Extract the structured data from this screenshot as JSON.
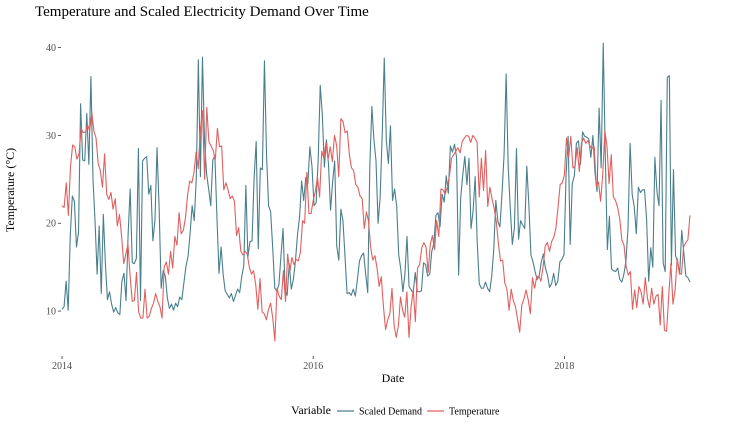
{
  "chart_data": {
    "type": "line",
    "title": "Temperature and Scaled Electricity Demand Over Time",
    "xlabel": "Date",
    "ylabel": "Temperature (°C)",
    "x_tick_labels": [
      "2014",
      "2016",
      "2018"
    ],
    "y_ticks": [
      10,
      20,
      30,
      40
    ],
    "xlim": [
      2014.0,
      2019.0
    ],
    "ylim": [
      5,
      42
    ],
    "grid": false,
    "legend": {
      "title": "Variable",
      "position": "bottom",
      "entries": [
        "Scaled Demand",
        "Temperature"
      ]
    },
    "x_sampling": "weekly, 2014-01-01 to 2018-12-31",
    "series": [
      {
        "name": "Scaled Demand",
        "color": "#4a7f8c",
        "values": [
          10.2,
          10.5,
          13.4,
          10.1,
          18.6,
          23.1,
          22.5,
          17.3,
          19.0,
          33.6,
          27.2,
          27.1,
          32.5,
          26.7,
          36.7,
          25.0,
          20.2,
          14.2,
          19.7,
          12.0,
          21.0,
          15.4,
          11.3,
          12.2,
          10.8,
          9.9,
          10.4,
          9.8,
          9.6,
          13.4,
          14.3,
          11.2,
          18.7,
          23.9,
          15.5,
          15.4,
          16.0,
          28.5,
          11.2,
          27.1,
          27.4,
          27.6,
          23.3,
          24.3,
          18.0,
          20.3,
          28.6,
          21.9,
          12.6,
          14.6,
          14.0,
          11.5,
          10.3,
          10.8,
          10.1,
          10.9,
          10.5,
          11.6,
          11.3,
          13.2,
          15.1,
          16.2,
          18.8,
          22.0,
          20.3,
          25.1,
          38.6,
          25.3,
          38.9,
          29.3,
          25.6,
          23.9,
          22.0,
          27.2,
          27.7,
          20.7,
          14.3,
          17.3,
          14.2,
          12.3,
          11.9,
          11.5,
          12.0,
          11.1,
          11.8,
          12.5,
          12.1,
          13.9,
          15.2,
          24.3,
          16.2,
          17.9,
          18.0,
          25.2,
          29.3,
          17.1,
          26.3,
          26.1,
          38.5,
          27.9,
          22.0,
          21.3,
          17.2,
          12.6,
          12.3,
          13.0,
          16.3,
          19.4,
          12.5,
          11.8,
          15.4,
          12.5,
          13.6,
          15.7,
          18.7,
          20.7,
          24.8,
          22.6,
          25.2,
          24.5,
          28.7,
          26.5,
          22.0,
          22.3,
          27.1,
          35.7,
          32.4,
          26.4,
          29.5,
          26.7,
          21.5,
          24.7,
          27.1,
          17.4,
          15.8,
          21.6,
          20.3,
          16.2,
          12.0,
          12.1,
          11.8,
          12.5,
          11.7,
          13.6,
          15.7,
          16.3,
          16.6,
          14.2,
          12.1,
          26.4,
          33.3,
          29.5,
          27.1,
          20.0,
          22.9,
          30.1,
          38.8,
          29.4,
          26.8,
          31.1,
          22.6,
          23.9,
          22.0,
          16.4,
          14.8,
          12.2,
          14.2,
          18.5,
          12.8,
          12.4,
          12.1,
          14.4,
          12.2,
          12.2,
          12.3,
          15.5,
          15.3,
          14.0,
          14.2,
          16.8,
          17.7,
          20.9,
          21.2,
          19.6,
          23.3,
          22.4,
          25.4,
          23.4,
          28.8,
          28.1,
          29.0,
          27.5,
          14.1,
          22.9,
          25.5,
          27.6,
          24.4,
          27.4,
          19.4,
          21.4,
          25.3,
          17.8,
          13.1,
          12.6,
          12.6,
          13.3,
          12.6,
          12.2,
          13.9,
          17.0,
          22.6,
          20.2,
          19.6,
          23.4,
          27.8,
          37.0,
          26.4,
          21.7,
          17.6,
          19.5,
          28.5,
          18.2,
          20.3,
          19.8,
          19.4,
          26.5,
          22.1,
          16.4,
          15.6,
          14.5,
          13.6,
          14.0,
          15.6,
          16.5,
          14.9,
          14.1,
          12.7,
          13.1,
          14.3,
          12.9,
          13.4,
          15.6,
          15.9,
          16.4,
          25.5,
          29.9,
          17.6,
          24.5,
          25.4,
          29.1,
          29.4,
          26.7,
          30.4,
          29.9,
          29.8,
          29.6,
          27.5,
          30.0,
          25.8,
          23.6,
          33.1,
          26.3,
          40.5,
          27.6,
          17.0,
          20.8,
          14.8,
          14.6,
          14.5,
          14.9,
          13.6,
          13.3,
          14.2,
          15.7,
          19.5,
          29.1,
          23.3,
          21.9,
          18.8,
          24.1,
          23.5,
          23.8,
          23.8,
          20.4,
          13.4,
          17.2,
          15.0,
          27.5,
          23.6,
          22.0,
          34.0,
          15.5,
          14.5,
          36.6,
          36.8,
          15.2,
          26.1,
          16.3,
          15.6,
          14.2,
          19.2,
          16.7,
          14.0,
          13.8,
          13.3
        ]
      },
      {
        "name": "Temperature",
        "color": "#e06060",
        "values": [
          22.0,
          21.8,
          24.6,
          20.9,
          26.5,
          28.9,
          28.7,
          27.3,
          27.9,
          30.8,
          30.3,
          30.4,
          31.2,
          30.5,
          32.6,
          30.5,
          29.7,
          26.8,
          26.0,
          24.1,
          27.9,
          23.3,
          22.7,
          23.5,
          21.6,
          22.8,
          19.7,
          21.0,
          18.5,
          15.4,
          16.5,
          17.6,
          14.0,
          11.1,
          11.2,
          14.4,
          9.9,
          9.2,
          9.2,
          12.5,
          9.2,
          9.4,
          10.3,
          10.9,
          12.0,
          11.1,
          10.5,
          9.2,
          15.0,
          15.6,
          14.2,
          16.8,
          14.9,
          18.5,
          17.5,
          21.2,
          18.8,
          19.2,
          20.6,
          23.2,
          24.8,
          24.6,
          25.8,
          28.1,
          26.2,
          30.7,
          32.8,
          25.0,
          33.2,
          29.3,
          28.8,
          28.3,
          27.2,
          30.8,
          28.7,
          28.8,
          23.8,
          24.6,
          23.8,
          22.8,
          23.1,
          22.5,
          18.6,
          19.5,
          16.8,
          16.4,
          16.8,
          16.5,
          15.0,
          14.2,
          14.6,
          13.0,
          10.2,
          13.7,
          9.9,
          9.7,
          9.0,
          10.2,
          10.9,
          9.2,
          6.6,
          12.6,
          11.7,
          11.3,
          14.6,
          11.1,
          16.5,
          14.4,
          16.1,
          15.3,
          15.9,
          15.7,
          16.7,
          20.3,
          20.0,
          25.8,
          21.1,
          21.1,
          22.6,
          23.6,
          25.3,
          23.0,
          28.2,
          27.4,
          29.2,
          27.3,
          28.7,
          27.0,
          30.0,
          28.9,
          25.3,
          31.9,
          31.6,
          30.3,
          30.5,
          27.8,
          26.3,
          26.0,
          24.4,
          24.1,
          23.1,
          22.8,
          19.4,
          21.3,
          20.2,
          17.2,
          15.8,
          16.3,
          14.9,
          12.8,
          13.9,
          10.5,
          7.9,
          9.0,
          9.7,
          12.6,
          8.4,
          7.0,
          8.3,
          11.6,
          10.1,
          9.3,
          12.2,
          7.0,
          10.5,
          12.4,
          8.8,
          14.9,
          15.3,
          17.2,
          17.8,
          17.3,
          14.4,
          17.6,
          18.6,
          17.0,
          20.3,
          18.5,
          23.9,
          23.8,
          23.3,
          24.1,
          25.4,
          27.4,
          27.8,
          28.2,
          28.6,
          28.0,
          29.3,
          29.7,
          30.0,
          29.9,
          29.2,
          30.0,
          29.7,
          29.2,
          23.0,
          27.4,
          23.7,
          28.3,
          21.9,
          24.1,
          22.8,
          21.7,
          20.2,
          17.7,
          15.7,
          15.8,
          13.2,
          12.5,
          10.1,
          12.5,
          11.2,
          10.5,
          9.1,
          7.6,
          10.7,
          11.4,
          12.4,
          11.3,
          9.7,
          13.8,
          12.6,
          13.9,
          14.0,
          13.4,
          15.1,
          17.4,
          17.8,
          16.8,
          17.9,
          18.4,
          19.4,
          21.8,
          24.4,
          24.6,
          25.5,
          29.7,
          27.5,
          29.9,
          26.3,
          26.5,
          28.6,
          25.9,
          29.1,
          29.7,
          29.1,
          29.4,
          28.8,
          28.5,
          28.7,
          24.2,
          24.7,
          22.5,
          25.5,
          30.5,
          28.8,
          24.5,
          27.8,
          23.0,
          22.6,
          21.8,
          20.5,
          18.1,
          17.5,
          15.1,
          14.1,
          14.5,
          10.2,
          12.4,
          10.4,
          12.8,
          12.2,
          10.8,
          13.8,
          11.5,
          10.4,
          12.6,
          10.8,
          11.7,
          11.9,
          8.4,
          12.8,
          7.8,
          7.7,
          11.7,
          15.4,
          10.8,
          12.4,
          16.0,
          14.3,
          14.2,
          17.3,
          17.8,
          18.1,
          20.9
        ]
      }
    ]
  }
}
